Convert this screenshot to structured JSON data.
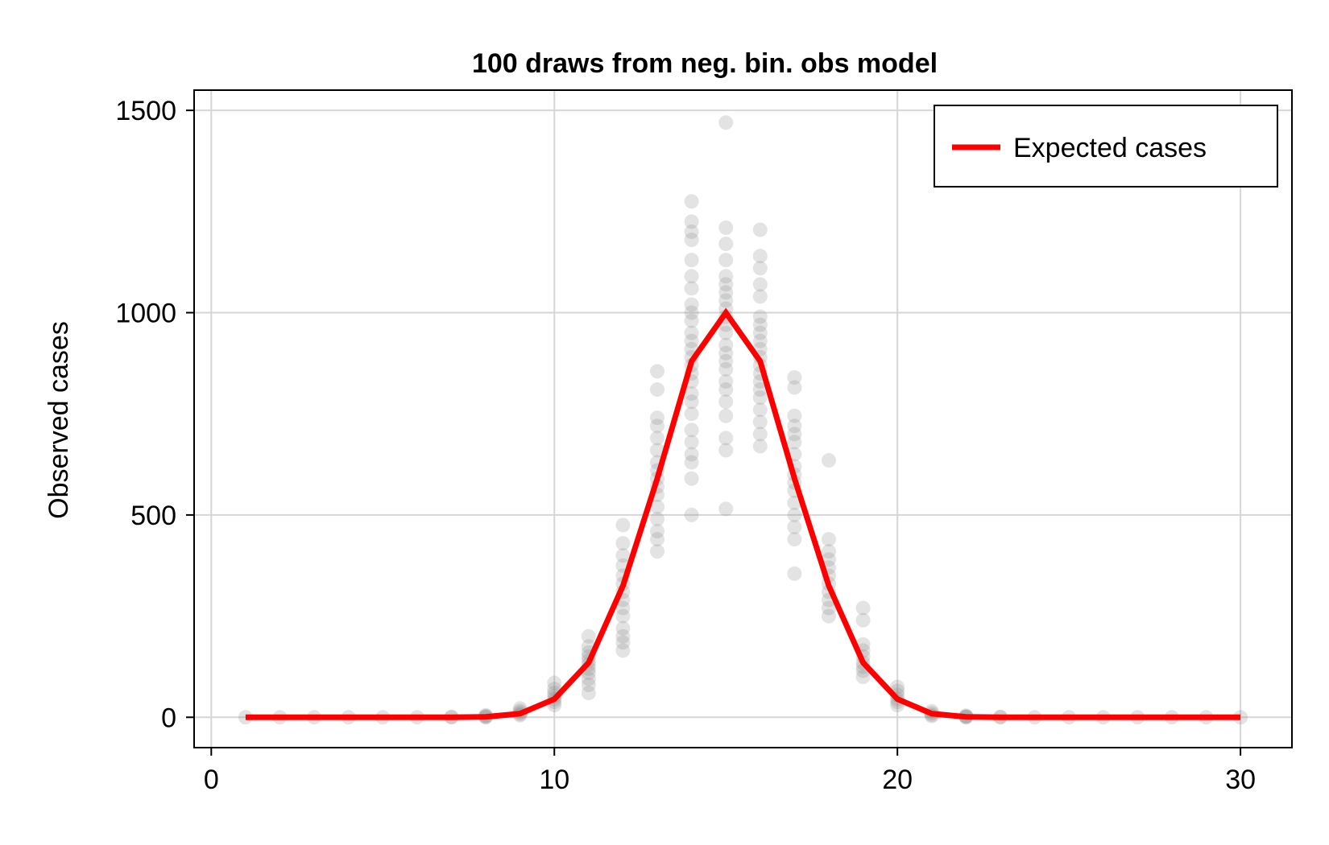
{
  "chart_data": {
    "type": "scatter",
    "title": "100 draws from neg. bin. obs model",
    "xlabel": "",
    "ylabel": "Observed cases",
    "xlim": [
      -0.5,
      31.5
    ],
    "ylim": [
      -75,
      1550
    ],
    "x_ticks": [
      0,
      10,
      20,
      30
    ],
    "y_ticks": [
      0,
      500,
      1000,
      1500
    ],
    "grid": true,
    "legend_position": "top-right",
    "colors": {
      "expected_line": "#ff0000",
      "draw_points": "#808080"
    },
    "series": [
      {
        "name": "Expected cases",
        "kind": "line",
        "x": [
          1,
          2,
          3,
          4,
          5,
          6,
          7,
          8,
          9,
          10,
          11,
          12,
          13,
          14,
          15,
          16,
          17,
          18,
          19,
          20,
          21,
          22,
          23,
          24,
          25,
          26,
          27,
          28,
          29,
          30
        ],
        "y": [
          0,
          0,
          0,
          0,
          0,
          0,
          0,
          1,
          9,
          45,
          135,
          325,
          590,
          880,
          1000,
          880,
          590,
          325,
          135,
          45,
          9,
          1,
          0,
          0,
          0,
          0,
          0,
          0,
          0,
          0
        ]
      },
      {
        "kind": "scatter",
        "points": [
          [
            1,
            0
          ],
          [
            2,
            0
          ],
          [
            3,
            0
          ],
          [
            4,
            0
          ],
          [
            5,
            0
          ],
          [
            6,
            0
          ],
          [
            7,
            0
          ],
          [
            7,
            1
          ],
          [
            8,
            0
          ],
          [
            8,
            1
          ],
          [
            8,
            3
          ],
          [
            8,
            5
          ],
          [
            9,
            5
          ],
          [
            9,
            8
          ],
          [
            9,
            12
          ],
          [
            9,
            16
          ],
          [
            9,
            22
          ],
          [
            10,
            30
          ],
          [
            10,
            38
          ],
          [
            10,
            45
          ],
          [
            10,
            52
          ],
          [
            10,
            60
          ],
          [
            10,
            70
          ],
          [
            10,
            85
          ],
          [
            11,
            60
          ],
          [
            11,
            80
          ],
          [
            11,
            95
          ],
          [
            11,
            110
          ],
          [
            11,
            120
          ],
          [
            11,
            130
          ],
          [
            11,
            140
          ],
          [
            11,
            150
          ],
          [
            11,
            160
          ],
          [
            11,
            175
          ],
          [
            11,
            200
          ],
          [
            12,
            165
          ],
          [
            12,
            185
          ],
          [
            12,
            200
          ],
          [
            12,
            220
          ],
          [
            12,
            250
          ],
          [
            12,
            270
          ],
          [
            12,
            290
          ],
          [
            12,
            310
          ],
          [
            12,
            330
          ],
          [
            12,
            350
          ],
          [
            12,
            375
          ],
          [
            12,
            400
          ],
          [
            12,
            430
          ],
          [
            12,
            475
          ],
          [
            13,
            410
          ],
          [
            13,
            440
          ],
          [
            13,
            460
          ],
          [
            13,
            490
          ],
          [
            13,
            520
          ],
          [
            13,
            550
          ],
          [
            13,
            570
          ],
          [
            13,
            590
          ],
          [
            13,
            610
          ],
          [
            13,
            630
          ],
          [
            13,
            660
          ],
          [
            13,
            690
          ],
          [
            13,
            720
          ],
          [
            13,
            740
          ],
          [
            13,
            810
          ],
          [
            13,
            855
          ],
          [
            14,
            500
          ],
          [
            14,
            590
          ],
          [
            14,
            630
          ],
          [
            14,
            650
          ],
          [
            14,
            680
          ],
          [
            14,
            710
          ],
          [
            14,
            750
          ],
          [
            14,
            780
          ],
          [
            14,
            800
          ],
          [
            14,
            830
          ],
          [
            14,
            850
          ],
          [
            14,
            870
          ],
          [
            14,
            890
          ],
          [
            14,
            910
          ],
          [
            14,
            930
          ],
          [
            14,
            950
          ],
          [
            14,
            980
          ],
          [
            14,
            1000
          ],
          [
            14,
            1020
          ],
          [
            14,
            1060
          ],
          [
            14,
            1090
          ],
          [
            14,
            1130
          ],
          [
            14,
            1180
          ],
          [
            14,
            1200
          ],
          [
            14,
            1225
          ],
          [
            14,
            1275
          ],
          [
            15,
            515
          ],
          [
            15,
            660
          ],
          [
            15,
            690
          ],
          [
            15,
            745
          ],
          [
            15,
            780
          ],
          [
            15,
            810
          ],
          [
            15,
            830
          ],
          [
            15,
            860
          ],
          [
            15,
            880
          ],
          [
            15,
            900
          ],
          [
            15,
            920
          ],
          [
            15,
            950
          ],
          [
            15,
            970
          ],
          [
            15,
            990
          ],
          [
            15,
            1010
          ],
          [
            15,
            1030
          ],
          [
            15,
            1050
          ],
          [
            15,
            1070
          ],
          [
            15,
            1090
          ],
          [
            15,
            1130
          ],
          [
            15,
            1170
          ],
          [
            15,
            1210
          ],
          [
            15,
            1470
          ],
          [
            16,
            670
          ],
          [
            16,
            700
          ],
          [
            16,
            730
          ],
          [
            16,
            760
          ],
          [
            16,
            790
          ],
          [
            16,
            810
          ],
          [
            16,
            830
          ],
          [
            16,
            850
          ],
          [
            16,
            870
          ],
          [
            16,
            890
          ],
          [
            16,
            910
          ],
          [
            16,
            930
          ],
          [
            16,
            950
          ],
          [
            16,
            970
          ],
          [
            16,
            990
          ],
          [
            16,
            1040
          ],
          [
            16,
            1070
          ],
          [
            16,
            1110
          ],
          [
            16,
            1140
          ],
          [
            16,
            1205
          ],
          [
            17,
            355
          ],
          [
            17,
            440
          ],
          [
            17,
            470
          ],
          [
            17,
            500
          ],
          [
            17,
            530
          ],
          [
            17,
            560
          ],
          [
            17,
            580
          ],
          [
            17,
            600
          ],
          [
            17,
            620
          ],
          [
            17,
            650
          ],
          [
            17,
            680
          ],
          [
            17,
            700
          ],
          [
            17,
            720
          ],
          [
            17,
            745
          ],
          [
            17,
            815
          ],
          [
            17,
            840
          ],
          [
            18,
            250
          ],
          [
            18,
            270
          ],
          [
            18,
            290
          ],
          [
            18,
            310
          ],
          [
            18,
            330
          ],
          [
            18,
            350
          ],
          [
            18,
            370
          ],
          [
            18,
            390
          ],
          [
            18,
            410
          ],
          [
            18,
            440
          ],
          [
            18,
            635
          ],
          [
            19,
            100
          ],
          [
            19,
            115
          ],
          [
            19,
            125
          ],
          [
            19,
            135
          ],
          [
            19,
            150
          ],
          [
            19,
            165
          ],
          [
            19,
            180
          ],
          [
            19,
            240
          ],
          [
            19,
            270
          ],
          [
            20,
            30
          ],
          [
            20,
            38
          ],
          [
            20,
            45
          ],
          [
            20,
            55
          ],
          [
            20,
            65
          ],
          [
            20,
            75
          ],
          [
            21,
            3
          ],
          [
            21,
            6
          ],
          [
            21,
            10
          ],
          [
            21,
            15
          ],
          [
            22,
            0
          ],
          [
            22,
            1
          ],
          [
            22,
            2
          ],
          [
            22,
            4
          ],
          [
            23,
            0
          ],
          [
            23,
            1
          ],
          [
            24,
            0
          ],
          [
            25,
            0
          ],
          [
            26,
            0
          ],
          [
            27,
            0
          ],
          [
            28,
            0
          ],
          [
            29,
            0
          ],
          [
            30,
            0
          ]
        ]
      }
    ]
  }
}
